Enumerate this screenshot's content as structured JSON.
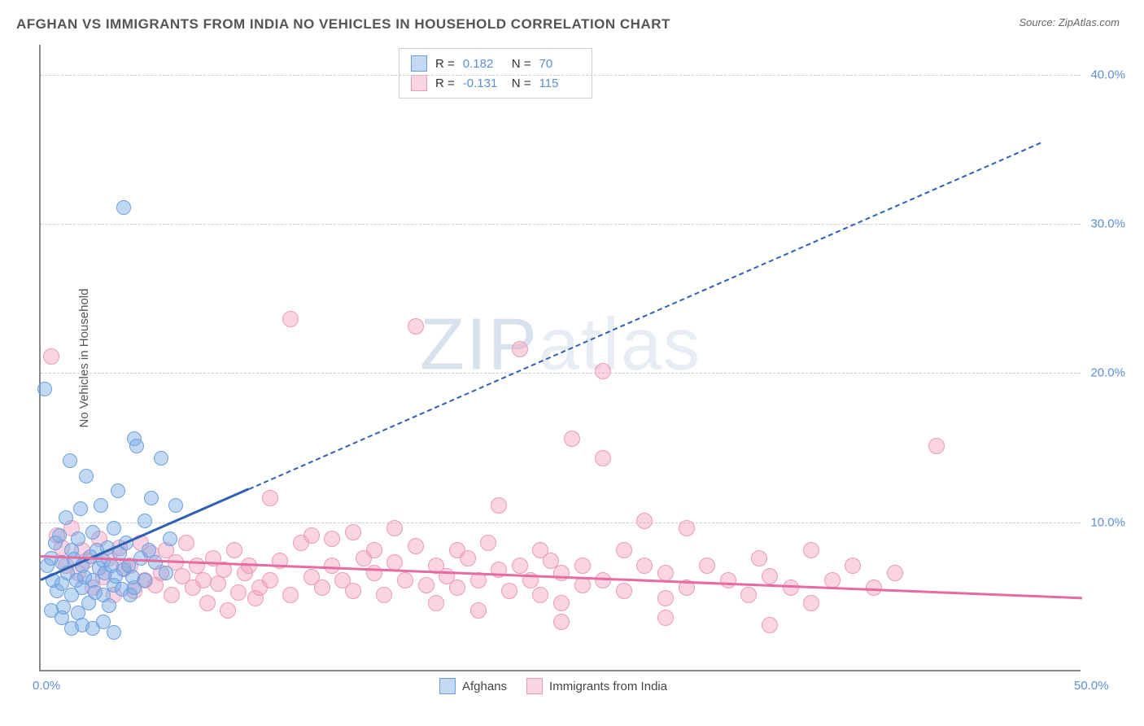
{
  "header": {
    "title": "AFGHAN VS IMMIGRANTS FROM INDIA NO VEHICLES IN HOUSEHOLD CORRELATION CHART",
    "source_prefix": "Source: ",
    "source_name": "ZipAtlas.com"
  },
  "watermark": {
    "bold": "ZIP",
    "thin": "atlas"
  },
  "axes": {
    "y_title": "No Vehicles in Household",
    "x_min": 0,
    "x_max": 50,
    "y_min": 0,
    "y_max": 42,
    "x_ticks": [
      {
        "v": 0,
        "label": "0.0%"
      },
      {
        "v": 50,
        "label": "50.0%"
      }
    ],
    "y_ticks": [
      {
        "v": 10,
        "label": "10.0%"
      },
      {
        "v": 20,
        "label": "20.0%"
      },
      {
        "v": 30,
        "label": "30.0%"
      },
      {
        "v": 40,
        "label": "40.0%"
      }
    ],
    "grid_color": "#cccccc",
    "axis_color": "#888888",
    "tick_color": "#5b8fd6",
    "label_fontsize": 15
  },
  "series": {
    "afghans": {
      "label": "Afghans",
      "fill": "rgba(120,170,230,0.45)",
      "stroke": "#6fa0dd",
      "trend_color": "#2f5fb0",
      "marker_radius": 9,
      "r_value": "0.182",
      "n_value": "70",
      "trend": {
        "x1": 0,
        "y1": 6.2,
        "x2": 10,
        "y2": 12.3,
        "dash_to_x": 48,
        "dash_to_y": 35.5
      },
      "points": [
        [
          0.2,
          18.8
        ],
        [
          0.3,
          7.0
        ],
        [
          0.5,
          7.5
        ],
        [
          0.6,
          6.0
        ],
        [
          0.7,
          8.5
        ],
        [
          0.8,
          5.3
        ],
        [
          0.9,
          9.0
        ],
        [
          1.0,
          7.2
        ],
        [
          1.0,
          5.8
        ],
        [
          1.1,
          4.2
        ],
        [
          1.2,
          10.2
        ],
        [
          1.3,
          6.5
        ],
        [
          1.4,
          14.0
        ],
        [
          1.5,
          8.0
        ],
        [
          1.5,
          5.0
        ],
        [
          1.6,
          7.4
        ],
        [
          1.7,
          6.0
        ],
        [
          1.8,
          8.8
        ],
        [
          1.8,
          3.8
        ],
        [
          1.9,
          10.8
        ],
        [
          2.0,
          7.0
        ],
        [
          2.0,
          5.5
        ],
        [
          2.1,
          6.2
        ],
        [
          2.2,
          13.0
        ],
        [
          2.3,
          4.5
        ],
        [
          2.4,
          7.6
        ],
        [
          2.5,
          9.2
        ],
        [
          2.5,
          6.0
        ],
        [
          2.6,
          5.2
        ],
        [
          2.7,
          8.0
        ],
        [
          2.8,
          6.8
        ],
        [
          2.9,
          11.0
        ],
        [
          3.0,
          7.3
        ],
        [
          3.0,
          5.0
        ],
        [
          3.1,
          6.5
        ],
        [
          3.2,
          8.2
        ],
        [
          3.3,
          4.3
        ],
        [
          3.4,
          7.0
        ],
        [
          3.5,
          9.5
        ],
        [
          3.5,
          5.7
        ],
        [
          3.6,
          6.3
        ],
        [
          3.7,
          12.0
        ],
        [
          3.8,
          7.8
        ],
        [
          3.9,
          5.4
        ],
        [
          4.0,
          6.7
        ],
        [
          4.1,
          8.5
        ],
        [
          4.2,
          7.0
        ],
        [
          4.3,
          5.0
        ],
        [
          4.4,
          6.2
        ],
        [
          4.5,
          15.5
        ],
        [
          4.6,
          15.0
        ],
        [
          4.8,
          7.5
        ],
        [
          5.0,
          10.0
        ],
        [
          5.0,
          6.0
        ],
        [
          5.2,
          8.0
        ],
        [
          5.3,
          11.5
        ],
        [
          5.5,
          7.2
        ],
        [
          5.8,
          14.2
        ],
        [
          6.0,
          6.5
        ],
        [
          6.2,
          8.8
        ],
        [
          6.5,
          11.0
        ],
        [
          4.0,
          31.0
        ],
        [
          0.5,
          4.0
        ],
        [
          1.0,
          3.5
        ],
        [
          2.0,
          3.0
        ],
        [
          2.5,
          2.8
        ],
        [
          3.0,
          3.2
        ],
        [
          3.5,
          2.5
        ],
        [
          1.5,
          2.8
        ],
        [
          4.5,
          5.5
        ]
      ]
    },
    "india": {
      "label": "Immigrants from India",
      "fill": "rgba(245,160,190,0.45)",
      "stroke": "#ec9ab8",
      "trend_color": "#e76aa0",
      "marker_radius": 10,
      "r_value": "-0.131",
      "n_value": "115",
      "trend": {
        "x1": 0,
        "y1": 7.8,
        "x2": 50,
        "y2": 5.0
      },
      "points": [
        [
          0.5,
          21.0
        ],
        [
          0.8,
          9.0
        ],
        [
          1.0,
          8.2
        ],
        [
          1.2,
          7.0
        ],
        [
          1.5,
          9.5
        ],
        [
          1.8,
          6.5
        ],
        [
          2.0,
          8.0
        ],
        [
          2.2,
          7.3
        ],
        [
          2.5,
          5.5
        ],
        [
          2.8,
          8.8
        ],
        [
          3.0,
          6.2
        ],
        [
          3.3,
          7.5
        ],
        [
          3.5,
          5.0
        ],
        [
          3.8,
          8.2
        ],
        [
          4.0,
          6.8
        ],
        [
          4.3,
          7.0
        ],
        [
          4.5,
          5.3
        ],
        [
          4.8,
          8.5
        ],
        [
          5.0,
          6.0
        ],
        [
          5.3,
          7.8
        ],
        [
          5.5,
          5.7
        ],
        [
          5.8,
          6.5
        ],
        [
          6.0,
          8.0
        ],
        [
          6.3,
          5.0
        ],
        [
          6.5,
          7.2
        ],
        [
          6.8,
          6.3
        ],
        [
          7.0,
          8.5
        ],
        [
          7.3,
          5.5
        ],
        [
          7.5,
          7.0
        ],
        [
          7.8,
          6.0
        ],
        [
          8.0,
          4.5
        ],
        [
          8.3,
          7.5
        ],
        [
          8.5,
          5.8
        ],
        [
          8.8,
          6.7
        ],
        [
          9.0,
          4.0
        ],
        [
          9.3,
          8.0
        ],
        [
          9.5,
          5.2
        ],
        [
          9.8,
          6.5
        ],
        [
          10.0,
          7.0
        ],
        [
          10.3,
          4.8
        ],
        [
          10.5,
          5.5
        ],
        [
          11.0,
          11.5
        ],
        [
          11.0,
          6.0
        ],
        [
          11.5,
          7.3
        ],
        [
          12.0,
          5.0
        ],
        [
          12.0,
          23.5
        ],
        [
          12.5,
          8.5
        ],
        [
          13.0,
          6.2
        ],
        [
          13.0,
          9.0
        ],
        [
          13.5,
          5.5
        ],
        [
          14.0,
          7.0
        ],
        [
          14.0,
          8.8
        ],
        [
          14.5,
          6.0
        ],
        [
          15.0,
          5.3
        ],
        [
          15.0,
          9.2
        ],
        [
          15.5,
          7.5
        ],
        [
          16.0,
          6.5
        ],
        [
          16.0,
          8.0
        ],
        [
          16.5,
          5.0
        ],
        [
          17.0,
          7.2
        ],
        [
          17.0,
          9.5
        ],
        [
          17.5,
          6.0
        ],
        [
          18.0,
          8.3
        ],
        [
          18.0,
          23.0
        ],
        [
          18.5,
          5.7
        ],
        [
          19.0,
          7.0
        ],
        [
          19.0,
          4.5
        ],
        [
          19.5,
          6.3
        ],
        [
          20.0,
          8.0
        ],
        [
          20.0,
          5.5
        ],
        [
          20.5,
          7.5
        ],
        [
          21.0,
          6.0
        ],
        [
          21.0,
          4.0
        ],
        [
          21.5,
          8.5
        ],
        [
          22.0,
          11.0
        ],
        [
          22.0,
          6.7
        ],
        [
          22.5,
          5.3
        ],
        [
          23.0,
          7.0
        ],
        [
          23.0,
          21.5
        ],
        [
          23.5,
          6.0
        ],
        [
          24.0,
          8.0
        ],
        [
          24.0,
          5.0
        ],
        [
          24.5,
          7.3
        ],
        [
          25.0,
          6.5
        ],
        [
          25.0,
          4.5
        ],
        [
          25.5,
          15.5
        ],
        [
          26.0,
          7.0
        ],
        [
          26.0,
          5.7
        ],
        [
          27.0,
          20.0
        ],
        [
          27.0,
          6.0
        ],
        [
          27.0,
          14.2
        ],
        [
          28.0,
          8.0
        ],
        [
          28.0,
          5.3
        ],
        [
          29.0,
          10.0
        ],
        [
          29.0,
          7.0
        ],
        [
          30.0,
          6.5
        ],
        [
          30.0,
          4.8
        ],
        [
          31.0,
          9.5
        ],
        [
          31.0,
          5.5
        ],
        [
          32.0,
          7.0
        ],
        [
          33.0,
          6.0
        ],
        [
          34.0,
          5.0
        ],
        [
          34.5,
          7.5
        ],
        [
          35.0,
          6.3
        ],
        [
          36.0,
          5.5
        ],
        [
          37.0,
          8.0
        ],
        [
          37.0,
          4.5
        ],
        [
          38.0,
          6.0
        ],
        [
          39.0,
          7.0
        ],
        [
          40.0,
          5.5
        ],
        [
          41.0,
          6.5
        ],
        [
          43.0,
          15.0
        ],
        [
          35.0,
          3.0
        ],
        [
          30.0,
          3.5
        ],
        [
          25.0,
          3.2
        ]
      ]
    }
  },
  "correlation_legend": {
    "r_label": "R =",
    "n_label": "N ="
  },
  "colors": {
    "background": "#ffffff",
    "title": "#555555",
    "source": "#666666",
    "value": "#5b8fd6"
  }
}
